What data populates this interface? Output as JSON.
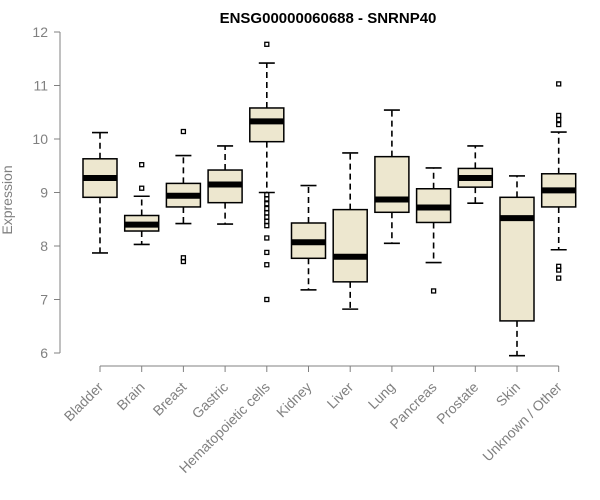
{
  "chart_data": {
    "type": "boxplot",
    "title": "ENSG00000060688 - SNRNP40",
    "xlabel": "",
    "ylabel": "Expression",
    "ylim": [
      6,
      12
    ],
    "yticks": [
      6,
      7,
      8,
      9,
      10,
      11,
      12
    ],
    "categories": [
      "Bladder",
      "Brain",
      "Breast",
      "Gastric",
      "Hematopoietic cells",
      "Kidney",
      "Liver",
      "Lung",
      "Pancreas",
      "Prostate",
      "Skin",
      "Unknown / Other"
    ],
    "boxes": [
      {
        "min": 7.87,
        "q1": 8.91,
        "median": 9.27,
        "q3": 9.63,
        "max": 10.12,
        "outliers": []
      },
      {
        "min": 8.03,
        "q1": 8.28,
        "median": 8.4,
        "q3": 8.57,
        "max": 8.93,
        "outliers": [
          9.08,
          9.52
        ]
      },
      {
        "min": 8.42,
        "q1": 8.73,
        "median": 8.94,
        "q3": 9.17,
        "max": 9.69,
        "outliers": [
          7.71,
          7.78,
          10.14
        ]
      },
      {
        "min": 8.41,
        "q1": 8.81,
        "median": 9.15,
        "q3": 9.42,
        "max": 9.87,
        "outliers": []
      },
      {
        "min": 9.0,
        "q1": 9.95,
        "median": 10.33,
        "q3": 10.58,
        "max": 11.42,
        "outliers": [
          11.77,
          8.96,
          8.88,
          8.79,
          8.7,
          8.62,
          8.54,
          8.46,
          8.38,
          8.15,
          7.88,
          7.65,
          7.0
        ]
      },
      {
        "min": 7.18,
        "q1": 7.77,
        "median": 8.07,
        "q3": 8.43,
        "max": 9.13,
        "outliers": []
      },
      {
        "min": 6.82,
        "q1": 7.33,
        "median": 7.8,
        "q3": 8.68,
        "max": 9.74,
        "outliers": []
      },
      {
        "min": 8.05,
        "q1": 8.63,
        "median": 8.87,
        "q3": 9.67,
        "max": 10.54,
        "outliers": []
      },
      {
        "min": 7.69,
        "q1": 8.44,
        "median": 8.72,
        "q3": 9.07,
        "max": 9.46,
        "outliers": [
          7.16
        ]
      },
      {
        "min": 8.8,
        "q1": 9.1,
        "median": 9.27,
        "q3": 9.45,
        "max": 9.87,
        "outliers": []
      },
      {
        "min": 5.95,
        "q1": 6.6,
        "median": 8.52,
        "q3": 8.91,
        "max": 9.31,
        "outliers": []
      },
      {
        "min": 7.93,
        "q1": 8.73,
        "median": 9.04,
        "q3": 9.35,
        "max": 10.13,
        "outliers": [
          10.27,
          10.36,
          10.44,
          11.03,
          7.62,
          7.55,
          7.4
        ]
      }
    ],
    "colors": {
      "box_fill": "#ede7cf",
      "box_stroke": "#000000",
      "axis": "#808080"
    }
  }
}
